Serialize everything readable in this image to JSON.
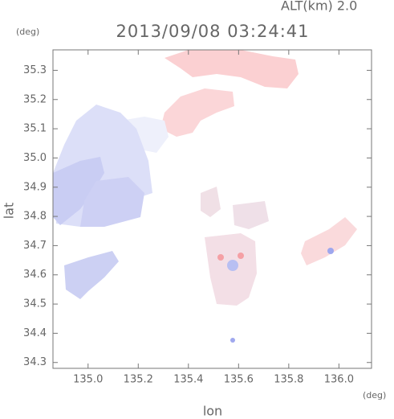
{
  "chart_data": {
    "type": "radar-map",
    "title": "2013/09/08 03:24:41",
    "annotation": "ALT(km) 2.0",
    "y_unit": "(deg)",
    "x_unit": "(deg)",
    "ylabel": "lat",
    "xlabel": "lon",
    "xlim": [
      134.86,
      136.13
    ],
    "ylim": [
      34.28,
      35.37
    ],
    "xticks": [
      {
        "value": 135,
        "label": "135.0"
      },
      135.2,
      135.4,
      135.6,
      135.8,
      {
        "value": 136,
        "label": "136.0"
      }
    ],
    "yticks": [
      34.3,
      34.4,
      34.5,
      34.6,
      34.7,
      34.8,
      34.9,
      {
        "value": 35,
        "label": "35.0"
      },
      35.1,
      35.2,
      35.3
    ]
  }
}
